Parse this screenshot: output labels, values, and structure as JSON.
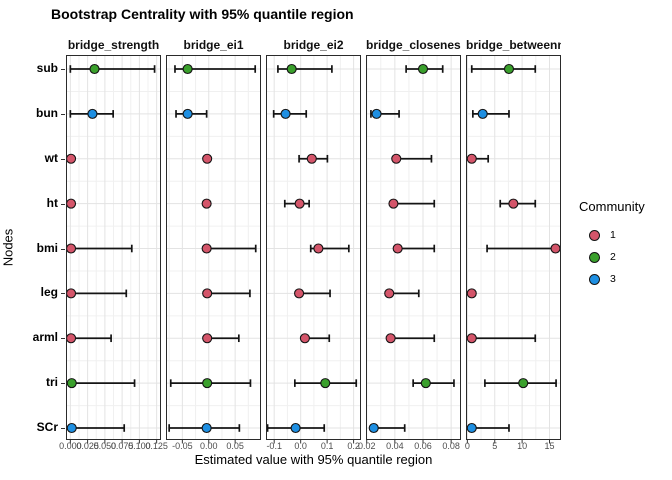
{
  "chart_data": {
    "type": "scatter",
    "subtype": "pointrange-faceted",
    "title": "Bootstrap Centrality with 95% quantile region",
    "xlabel": "Estimated value with 95% quantile region",
    "ylabel": "Nodes",
    "grid": true,
    "nodes": [
      "sub",
      "bun",
      "wt",
      "ht",
      "bmi",
      "leg",
      "arml",
      "tri",
      "SCr"
    ],
    "legend": {
      "title": "Community",
      "position": "right",
      "items": [
        {
          "label": "1",
          "color": "#D4556A"
        },
        {
          "label": "2",
          "color": "#3AA02C"
        },
        {
          "label": "3",
          "color": "#1E8FE2"
        }
      ]
    },
    "facets": [
      {
        "label": "bridge_strength",
        "xlim": [
          -0.0063,
          0.1313
        ],
        "tick_values": [
          0,
          0.025,
          0.05,
          0.075,
          0.1,
          0.125
        ],
        "tick_labels": [
          "0.000",
          "0.025",
          "0.050",
          "0.075",
          "0.100",
          "0.125"
        ],
        "points": [
          {
            "node": "sub",
            "community": "2",
            "est": 0.035,
            "lo": 0.0,
            "hi": 0.122
          },
          {
            "node": "bun",
            "community": "3",
            "est": 0.032,
            "lo": 0.0,
            "hi": 0.062
          },
          {
            "node": "wt",
            "community": "1",
            "est": 0.001,
            "lo": 0.001,
            "hi": 0.001
          },
          {
            "node": "ht",
            "community": "1",
            "est": 0.001,
            "lo": 0.001,
            "hi": 0.001
          },
          {
            "node": "bmi",
            "community": "1",
            "est": 0.001,
            "lo": 0.001,
            "hi": 0.089
          },
          {
            "node": "leg",
            "community": "1",
            "est": 0.001,
            "lo": 0.001,
            "hi": 0.081
          },
          {
            "node": "arml",
            "community": "1",
            "est": 0.001,
            "lo": 0.001,
            "hi": 0.059
          },
          {
            "node": "tri",
            "community": "2",
            "est": 0.002,
            "lo": 0.002,
            "hi": 0.093
          },
          {
            "node": "SCr",
            "community": "3",
            "est": 0.002,
            "lo": 0.002,
            "hi": 0.078
          }
        ]
      },
      {
        "label": "bridge_ei1",
        "xlim": [
          -0.081,
          0.099
        ],
        "tick_values": [
          -0.05,
          0,
          0.05
        ],
        "tick_labels": [
          "-0.05",
          "0.00",
          "0.05"
        ],
        "points": [
          {
            "node": "sub",
            "community": "2",
            "est": -0.04,
            "lo": -0.064,
            "hi": 0.088
          },
          {
            "node": "bun",
            "community": "3",
            "est": -0.04,
            "lo": -0.062,
            "hi": -0.004
          },
          {
            "node": "wt",
            "community": "1",
            "est": -0.003,
            "lo": -0.003,
            "hi": -0.003
          },
          {
            "node": "ht",
            "community": "1",
            "est": -0.004,
            "lo": -0.004,
            "hi": -0.004
          },
          {
            "node": "bmi",
            "community": "1",
            "est": -0.004,
            "lo": -0.004,
            "hi": 0.089
          },
          {
            "node": "leg",
            "community": "1",
            "est": -0.003,
            "lo": -0.003,
            "hi": 0.078
          },
          {
            "node": "arml",
            "community": "1",
            "est": -0.003,
            "lo": -0.003,
            "hi": 0.057
          },
          {
            "node": "tri",
            "community": "2",
            "est": -0.003,
            "lo": -0.072,
            "hi": 0.079
          },
          {
            "node": "SCr",
            "community": "3",
            "est": -0.004,
            "lo": -0.075,
            "hi": 0.058
          }
        ]
      },
      {
        "label": "bridge_ei2",
        "xlim": [
          -0.131,
          0.228
        ],
        "tick_values": [
          -0.1,
          0,
          0.1,
          0.2
        ],
        "tick_labels": [
          "-0.1",
          "0.0",
          "0.1",
          "0.2"
        ],
        "points": [
          {
            "node": "sub",
            "community": "2",
            "est": -0.034,
            "lo": -0.086,
            "hi": 0.118
          },
          {
            "node": "bun",
            "community": "3",
            "est": -0.057,
            "lo": -0.102,
            "hi": 0.021
          },
          {
            "node": "wt",
            "community": "1",
            "est": 0.042,
            "lo": -0.006,
            "hi": 0.101
          },
          {
            "node": "ht",
            "community": "1",
            "est": -0.004,
            "lo": -0.06,
            "hi": 0.032
          },
          {
            "node": "bmi",
            "community": "1",
            "est": 0.067,
            "lo": 0.038,
            "hi": 0.182
          },
          {
            "node": "leg",
            "community": "1",
            "est": -0.006,
            "lo": -0.006,
            "hi": 0.111
          },
          {
            "node": "arml",
            "community": "1",
            "est": 0.016,
            "lo": 0.008,
            "hi": 0.108
          },
          {
            "node": "tri",
            "community": "2",
            "est": 0.093,
            "lo": -0.022,
            "hi": 0.21
          },
          {
            "node": "SCr",
            "community": "3",
            "est": -0.019,
            "lo": -0.125,
            "hi": 0.089
          }
        ]
      },
      {
        "label": "bridge_closeness",
        "xlim": [
          0.0195,
          0.087
        ],
        "tick_values": [
          0.02,
          0.04,
          0.06,
          0.08
        ],
        "tick_labels": [
          "0.02",
          "0.04",
          "0.06",
          "0.08"
        ],
        "points": [
          {
            "node": "sub",
            "community": "2",
            "est": 0.06,
            "lo": 0.048,
            "hi": 0.074
          },
          {
            "node": "bun",
            "community": "3",
            "est": 0.027,
            "lo": 0.023,
            "hi": 0.043
          },
          {
            "node": "wt",
            "community": "1",
            "est": 0.041,
            "lo": 0.041,
            "hi": 0.066
          },
          {
            "node": "ht",
            "community": "1",
            "est": 0.039,
            "lo": 0.039,
            "hi": 0.068
          },
          {
            "node": "bmi",
            "community": "1",
            "est": 0.042,
            "lo": 0.042,
            "hi": 0.068
          },
          {
            "node": "leg",
            "community": "1",
            "est": 0.036,
            "lo": 0.036,
            "hi": 0.057
          },
          {
            "node": "arml",
            "community": "1",
            "est": 0.037,
            "lo": 0.037,
            "hi": 0.068
          },
          {
            "node": "tri",
            "community": "2",
            "est": 0.062,
            "lo": 0.053,
            "hi": 0.082
          },
          {
            "node": "SCr",
            "community": "3",
            "est": 0.025,
            "lo": 0.025,
            "hi": 0.047
          }
        ]
      },
      {
        "label": "bridge_betweenness",
        "xlim": [
          -0.25,
          17.1
        ],
        "tick_values": [
          0,
          5,
          10,
          15
        ],
        "tick_labels": [
          "0",
          "5",
          "10",
          "15"
        ],
        "points": [
          {
            "node": "sub",
            "community": "2",
            "est": 7.6,
            "lo": 0.8,
            "hi": 12.4
          },
          {
            "node": "bun",
            "community": "3",
            "est": 2.8,
            "lo": 1.0,
            "hi": 7.6
          },
          {
            "node": "wt",
            "community": "1",
            "est": 0.8,
            "lo": 0.8,
            "hi": 3.8
          },
          {
            "node": "ht",
            "community": "1",
            "est": 8.4,
            "lo": 6.0,
            "hi": 12.4
          },
          {
            "node": "bmi",
            "community": "1",
            "est": 16.1,
            "lo": 3.6,
            "hi": 16.4
          },
          {
            "node": "leg",
            "community": "1",
            "est": 0.8,
            "lo": 0.8,
            "hi": 0.8
          },
          {
            "node": "arml",
            "community": "1",
            "est": 0.8,
            "lo": 0.8,
            "hi": 12.4
          },
          {
            "node": "tri",
            "community": "2",
            "est": 10.2,
            "lo": 3.2,
            "hi": 16.2
          },
          {
            "node": "SCr",
            "community": "3",
            "est": 0.8,
            "lo": 0.8,
            "hi": 7.6
          }
        ]
      }
    ],
    "style_colors": {
      "panel_border": "#2a2a2a",
      "grid_major": "#e3e3e3",
      "grid_minor": "#f0f0f0",
      "errorbar": "#141414",
      "tick_text": "#4d4d4d"
    }
  }
}
